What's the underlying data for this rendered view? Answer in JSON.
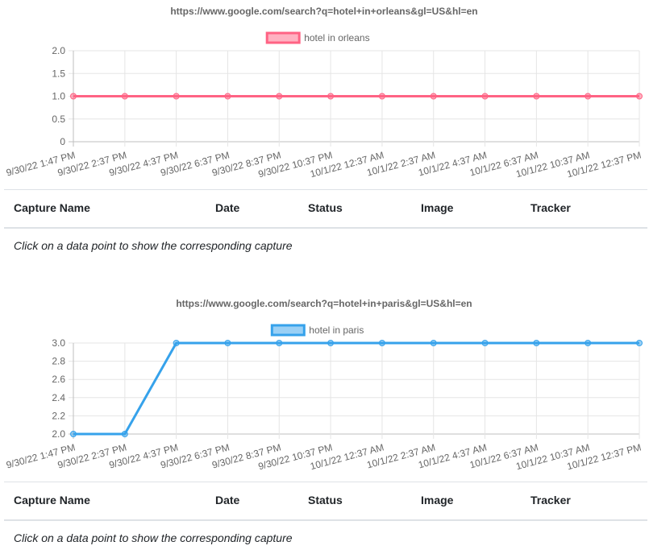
{
  "chart_data": [
    {
      "type": "line",
      "title": "https://www.google.com/search?q=hotel+in+orleans&gl=US&hl=en",
      "categories": [
        "9/30/22 1:47 PM",
        "9/30/22 2:37 PM",
        "9/30/22 4:37 PM",
        "9/30/22 6:37 PM",
        "9/30/22 8:37 PM",
        "9/30/22 10:37 PM",
        "10/1/22 12:37 AM",
        "10/1/22 2:37 AM",
        "10/1/22 4:37 AM",
        "10/1/22 6:37 AM",
        "10/1/22 10:37 AM",
        "10/1/22 12:37 PM"
      ],
      "series": [
        {
          "name": "hotel in orleans",
          "values": [
            1,
            1,
            1,
            1,
            1,
            1,
            1,
            1,
            1,
            1,
            1,
            1
          ],
          "color": "#ff6384",
          "fill": "rgba(255,99,132,0.5)"
        }
      ],
      "ylim": [
        0,
        2
      ],
      "yticks": [
        "2.0",
        "1.5",
        "1.0",
        "0.5",
        "0"
      ],
      "ytick_values": [
        2,
        1.5,
        1,
        0.5,
        0
      ],
      "legend": "top",
      "grid": true
    },
    {
      "type": "line",
      "title": "https://www.google.com/search?q=hotel+in+paris&gl=US&hl=en",
      "categories": [
        "9/30/22 1:47 PM",
        "9/30/22 2:37 PM",
        "9/30/22 4:37 PM",
        "9/30/22 6:37 PM",
        "9/30/22 8:37 PM",
        "9/30/22 10:37 PM",
        "10/1/22 12:37 AM",
        "10/1/22 2:37 AM",
        "10/1/22 4:37 AM",
        "10/1/22 6:37 AM",
        "10/1/22 10:37 AM",
        "10/1/22 12:37 PM"
      ],
      "series": [
        {
          "name": "hotel in paris",
          "values": [
            2,
            2,
            3,
            3,
            3,
            3,
            3,
            3,
            3,
            3,
            3,
            3
          ],
          "color": "#36a2eb",
          "fill": "rgba(54,162,235,0.5)"
        }
      ],
      "ylim": [
        2,
        3
      ],
      "yticks": [
        "3.0",
        "2.8",
        "2.6",
        "2.4",
        "2.2",
        "2.0"
      ],
      "ytick_values": [
        3,
        2.8,
        2.6,
        2.4,
        2.2,
        2
      ],
      "legend": "top",
      "grid": true
    }
  ],
  "table": {
    "headers": [
      "Capture Name",
      "Date",
      "Status",
      "Image",
      "Tracker"
    ]
  },
  "hint": "Click on a data point to show the corresponding capture"
}
